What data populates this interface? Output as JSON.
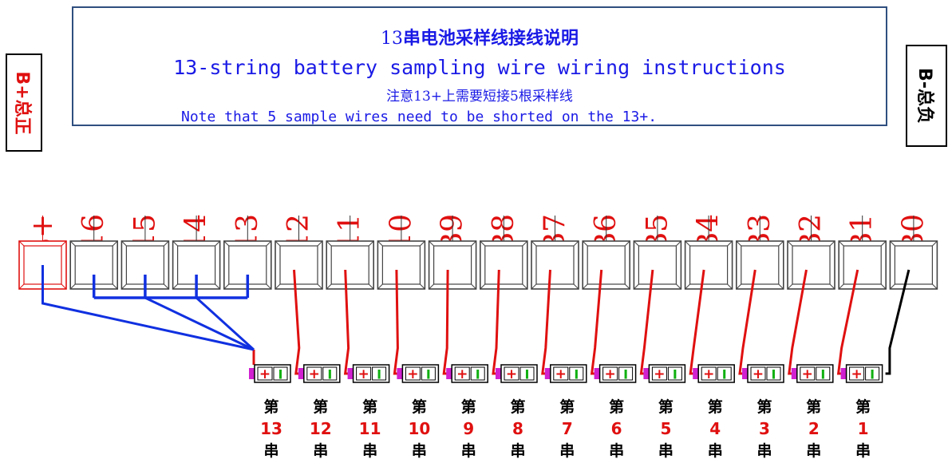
{
  "title": {
    "line1_num": "13",
    "line1_cn": "串电池采样线接线说明",
    "line2": "13-string battery sampling wire wiring instructions",
    "line3": "注意13+上需要短接5根采样线",
    "line4": "Note that 5 sample wires need to be shorted on the 13+."
  },
  "bplus_total": "B+总正",
  "bminus_total": "B-总负",
  "pins": [
    "B+",
    "B16",
    "B15",
    "B14",
    "B13",
    "B12",
    "B11",
    "B10",
    "B9",
    "B8",
    "B7",
    "B6",
    "B5",
    "B4",
    "B3",
    "B2",
    "B1",
    "B0"
  ],
  "cell_labels": [
    {
      "top": "第",
      "num": "13",
      "bottom": "串"
    },
    {
      "top": "第",
      "num": "12",
      "bottom": "串"
    },
    {
      "top": "第",
      "num": "11",
      "bottom": "串"
    },
    {
      "top": "第",
      "num": "10",
      "bottom": "串"
    },
    {
      "top": "第",
      "num": "9",
      "bottom": "串"
    },
    {
      "top": "第",
      "num": "8",
      "bottom": "串"
    },
    {
      "top": "第",
      "num": "7",
      "bottom": "串"
    },
    {
      "top": "第",
      "num": "6",
      "bottom": "串"
    },
    {
      "top": "第",
      "num": "5",
      "bottom": "串"
    },
    {
      "top": "第",
      "num": "4",
      "bottom": "串"
    },
    {
      "top": "第",
      "num": "3",
      "bottom": "串"
    },
    {
      "top": "第",
      "num": "2",
      "bottom": "串"
    },
    {
      "top": "第",
      "num": "1",
      "bottom": "串"
    }
  ],
  "battery_terminal_plus": "+",
  "battery_terminal_minus": "I",
  "colors": {
    "title_blue": "#1a1ae6",
    "pin_label_red": "#e01010",
    "wire_red": "#e01010",
    "wire_blue": "#1030e0",
    "wire_black": "#000000",
    "battery_pad": "#d020d0"
  }
}
